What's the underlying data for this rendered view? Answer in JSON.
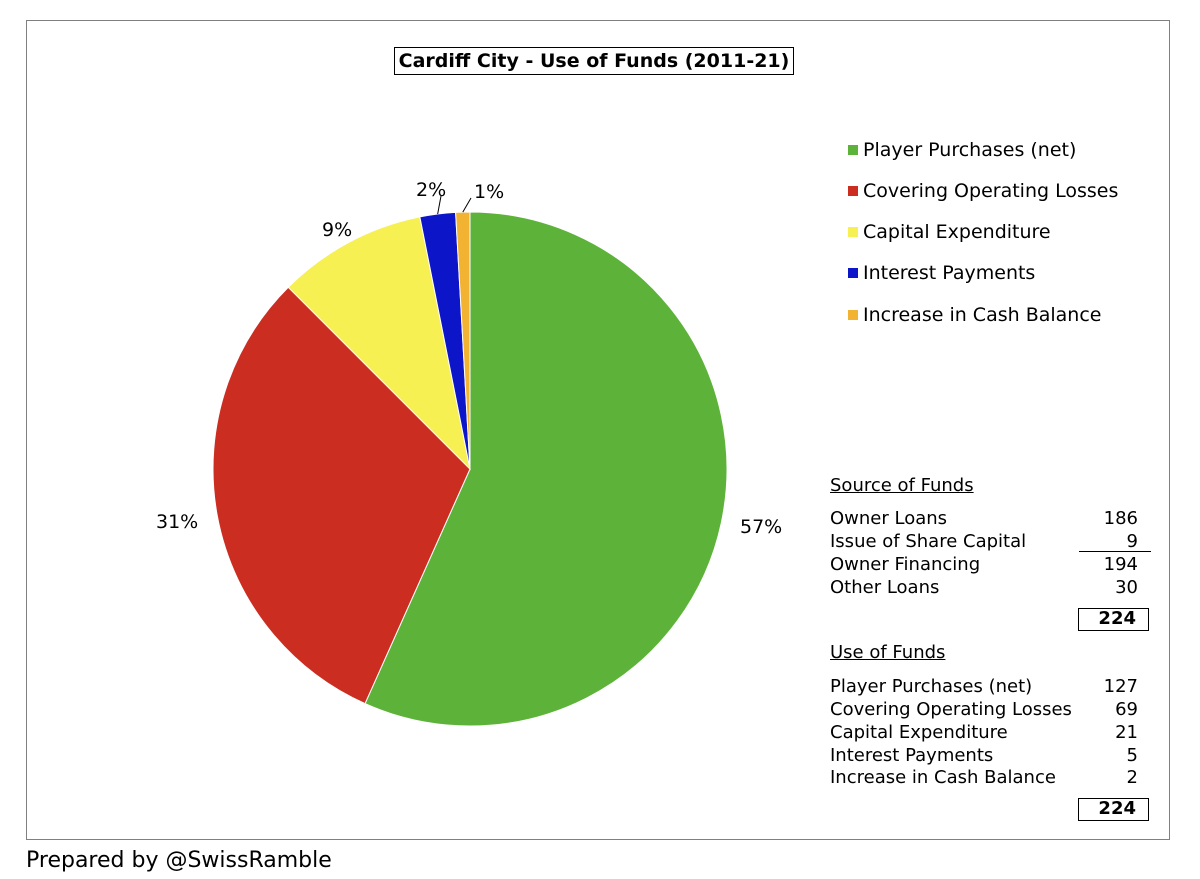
{
  "footer": "Prepared by @SwissRamble",
  "chart_data": {
    "type": "pie",
    "title": "Cardiff City - Use of Funds (2011-21)",
    "legend_position": "right",
    "slices": [
      {
        "label": "Player Purchases (net)",
        "value": 127,
        "pct_label": "57%",
        "color": "#5db33a"
      },
      {
        "label": "Covering Operating Losses",
        "value": 69,
        "pct_label": "31%",
        "color": "#cb2d20"
      },
      {
        "label": "Capital Expenditure",
        "value": 21,
        "pct_label": "9%",
        "color": "#f6f052"
      },
      {
        "label": "Interest Payments",
        "value": 5,
        "pct_label": "2%",
        "color": "#0d15c8"
      },
      {
        "label": "Increase in Cash Balance",
        "value": 2,
        "pct_label": "1%",
        "color": "#f2b232"
      }
    ]
  },
  "source_table": {
    "heading": "Source of Funds",
    "rows": [
      {
        "label": "Owner Loans",
        "value": "186"
      },
      {
        "label": "Issue of Share Capital",
        "value": "9"
      },
      {
        "label": "Owner Financing",
        "value": "194"
      },
      {
        "label": "Other Loans",
        "value": "30"
      }
    ],
    "total": "224"
  },
  "use_table": {
    "heading": "Use of Funds",
    "rows": [
      {
        "label": "Player Purchases (net)",
        "value": "127"
      },
      {
        "label": "Covering Operating Losses",
        "value": "69"
      },
      {
        "label": "Capital Expenditure",
        "value": "21"
      },
      {
        "label": "Interest Payments",
        "value": "5"
      },
      {
        "label": "Increase in Cash Balance",
        "value": "2"
      }
    ],
    "total": "224"
  }
}
